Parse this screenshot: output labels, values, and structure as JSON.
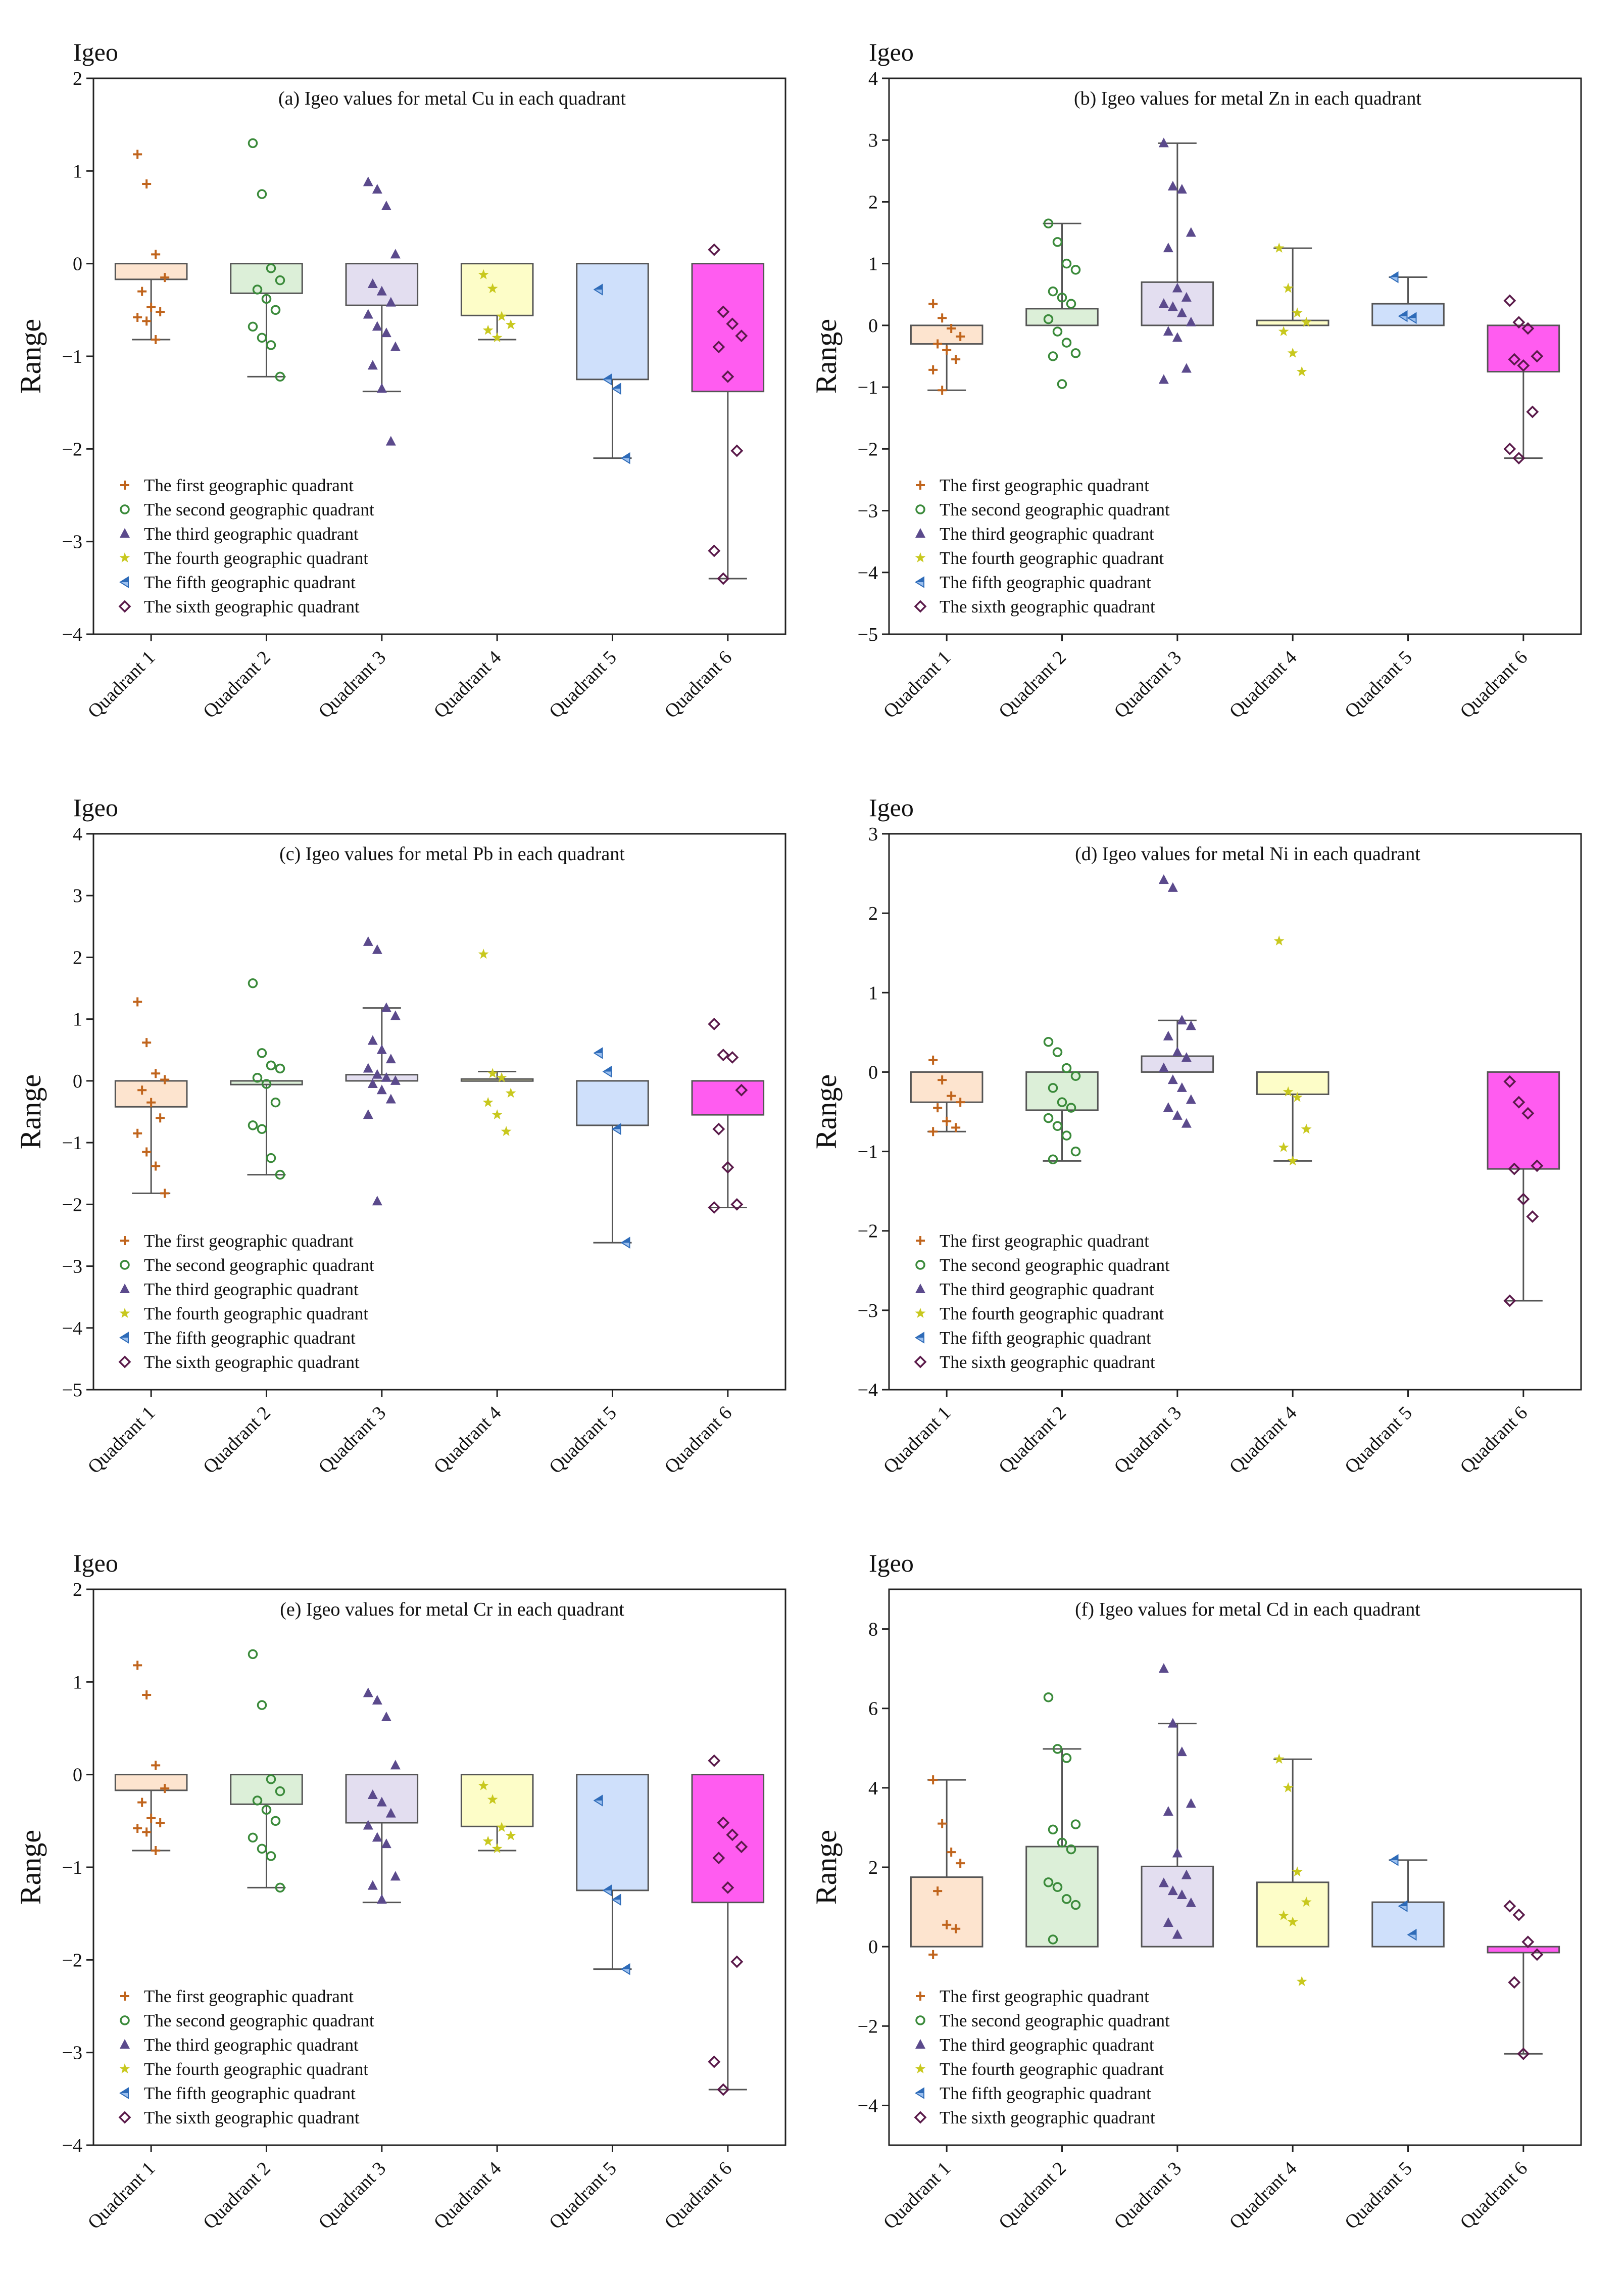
{
  "figure": {
    "igeo_label": "Igeo",
    "y_label": "Range",
    "categories": [
      "Quadrant 1",
      "Quadrant 2",
      "Quadrant 3",
      "Quadrant 4",
      "Quadrant 5",
      "Quadrant 6"
    ],
    "legend": [
      "The first geographic quadrant",
      "The second geographic quadrant",
      "The third geographic quadrant",
      "The fourth geographic quadrant",
      "The fifth geographic quadrant",
      "The sixth geographic quadrant"
    ],
    "series_colors": [
      "#c0641c",
      "#3a8a3a",
      "#5b4a8c",
      "#c8c81e",
      "#2e6bb8",
      "#5a1a4a"
    ],
    "box_fills": [
      "#fde4cf",
      "#dcefd8",
      "#e3def0",
      "#fdfdc8",
      "#cfe0fb",
      "#ff5cf0"
    ],
    "markers": [
      "plus",
      "circle",
      "triangle",
      "star",
      "half-triangle",
      "diamond"
    ]
  },
  "chart_data": [
    {
      "type": "box",
      "title": "(a) Igeo values for metal Cu in each quadrant",
      "ylabel": "Range",
      "ylim": [
        -4,
        2
      ],
      "yticks": [
        2,
        1,
        0,
        -1,
        -2,
        -3,
        -4
      ],
      "categories": [
        "Quadrant 1",
        "Quadrant 2",
        "Quadrant 3",
        "Quadrant 4",
        "Quadrant 5",
        "Quadrant 6"
      ],
      "boxes": [
        {
          "top": 0,
          "bottom": -0.17,
          "whisker_low": -0.82,
          "whisker_high": null
        },
        {
          "top": 0,
          "bottom": -0.32,
          "whisker_low": -1.22,
          "whisker_high": null
        },
        {
          "top": 0,
          "bottom": -0.45,
          "whisker_low": -1.38,
          "whisker_high": null
        },
        {
          "top": 0,
          "bottom": -0.56,
          "whisker_low": -0.82,
          "whisker_high": null
        },
        {
          "top": 0,
          "bottom": -1.25,
          "whisker_low": -2.1,
          "whisker_high": null
        },
        {
          "top": 0,
          "bottom": -1.38,
          "whisker_low": -3.4,
          "whisker_high": null
        }
      ],
      "points": [
        [
          1.18,
          0.86,
          0.1,
          -0.15,
          -0.3,
          -0.47,
          -0.52,
          -0.58,
          -0.62,
          -0.82
        ],
        [
          1.3,
          0.75,
          -0.05,
          -0.18,
          -0.28,
          -0.38,
          -0.5,
          -0.68,
          -0.8,
          -0.88,
          -1.22
        ],
        [
          0.88,
          0.8,
          0.62,
          0.1,
          -0.22,
          -0.3,
          -0.42,
          -0.55,
          -0.68,
          -0.75,
          -0.9,
          -1.1,
          -1.35,
          -1.92
        ],
        [
          -0.12,
          -0.27,
          -0.57,
          -0.66,
          -0.72,
          -0.8
        ],
        [
          -0.28,
          -1.25,
          -1.35,
          -2.1
        ],
        [
          0.15,
          -0.52,
          -0.65,
          -0.78,
          -0.9,
          -1.22,
          -2.02,
          -3.1,
          -3.4
        ]
      ]
    },
    {
      "type": "box",
      "title": "(b) Igeo values for metal Zn in each quadrant",
      "ylabel": "Range",
      "ylim": [
        -5,
        4
      ],
      "yticks": [
        4,
        3,
        2,
        1,
        0,
        -1,
        -2,
        -3,
        -4,
        -5
      ],
      "categories": [
        "Quadrant 1",
        "Quadrant 2",
        "Quadrant 3",
        "Quadrant 4",
        "Quadrant 5",
        "Quadrant 6"
      ],
      "boxes": [
        {
          "top": 0,
          "bottom": -0.3,
          "whisker_low": -1.05,
          "whisker_high": null
        },
        {
          "top": 0.27,
          "bottom": 0,
          "whisker_low": null,
          "whisker_high": 1.65
        },
        {
          "top": 0.7,
          "bottom": 0,
          "whisker_low": null,
          "whisker_high": 2.95
        },
        {
          "top": 0.08,
          "bottom": 0,
          "whisker_low": null,
          "whisker_high": 1.25
        },
        {
          "top": 0.35,
          "bottom": 0,
          "whisker_low": null,
          "whisker_high": 0.78
        },
        {
          "top": 0,
          "bottom": -0.75,
          "whisker_low": -2.15,
          "whisker_high": null
        }
      ],
      "points": [
        [
          0.35,
          0.12,
          -0.05,
          -0.18,
          -0.3,
          -0.4,
          -0.55,
          -0.72,
          -1.05
        ],
        [
          1.65,
          1.35,
          1.0,
          0.9,
          0.55,
          0.45,
          0.35,
          0.1,
          -0.1,
          -0.28,
          -0.45,
          -0.5,
          -0.95
        ],
        [
          2.95,
          2.25,
          2.2,
          1.5,
          1.25,
          0.6,
          0.45,
          0.35,
          0.3,
          0.2,
          0.05,
          -0.1,
          -0.2,
          -0.7,
          -0.88
        ],
        [
          1.25,
          0.6,
          0.2,
          0.05,
          -0.1,
          -0.45,
          -0.75
        ],
        [
          0.78,
          0.15,
          0.12
        ],
        [
          0.4,
          0.05,
          -0.05,
          -0.5,
          -0.55,
          -0.65,
          -1.4,
          -2.0,
          -2.15
        ]
      ]
    },
    {
      "type": "box",
      "title": "(c) Igeo values for metal Pb in each quadrant",
      "ylabel": "Range",
      "ylim": [
        -5,
        4
      ],
      "yticks": [
        4,
        3,
        2,
        1,
        0,
        -1,
        -2,
        -3,
        -4,
        -5
      ],
      "categories": [
        "Quadrant 1",
        "Quadrant 2",
        "Quadrant 3",
        "Quadrant 4",
        "Quadrant 5",
        "Quadrant 6"
      ],
      "boxes": [
        {
          "top": 0,
          "bottom": -0.42,
          "whisker_low": -1.82,
          "whisker_high": null
        },
        {
          "top": 0,
          "bottom": -0.06,
          "whisker_low": -1.52,
          "whisker_high": null
        },
        {
          "top": 0.1,
          "bottom": 0,
          "whisker_low": null,
          "whisker_high": 1.18
        },
        {
          "top": 0.03,
          "bottom": 0,
          "whisker_low": null,
          "whisker_high": 0.15
        },
        {
          "top": 0,
          "bottom": -0.72,
          "whisker_low": -2.62,
          "whisker_high": null
        },
        {
          "top": 0,
          "bottom": -0.55,
          "whisker_low": -2.05,
          "whisker_high": null
        }
      ],
      "points": [
        [
          1.28,
          0.62,
          0.12,
          0.02,
          -0.15,
          -0.35,
          -0.6,
          -0.85,
          -1.15,
          -1.38,
          -1.82
        ],
        [
          1.58,
          0.45,
          0.25,
          0.2,
          0.05,
          -0.05,
          -0.35,
          -0.72,
          -0.78,
          -1.25,
          -1.52
        ],
        [
          2.25,
          2.12,
          1.18,
          1.05,
          0.65,
          0.5,
          0.35,
          0.2,
          0.1,
          0.05,
          0.0,
          -0.05,
          -0.15,
          -0.3,
          -0.55,
          -1.95
        ],
        [
          2.05,
          0.12,
          0.05,
          -0.2,
          -0.35,
          -0.55,
          -0.82
        ],
        [
          0.45,
          0.15,
          -0.78,
          -2.62
        ],
        [
          0.92,
          0.42,
          0.38,
          -0.15,
          -0.78,
          -1.4,
          -2.0,
          -2.05
        ]
      ]
    },
    {
      "type": "box",
      "title": "(d) Igeo values for metal Ni in each quadrant",
      "ylabel": "Range",
      "ylim": [
        -4,
        3
      ],
      "yticks": [
        3,
        2,
        1,
        0,
        -1,
        -2,
        -3,
        -4
      ],
      "categories": [
        "Quadrant 1",
        "Quadrant 2",
        "Quadrant 3",
        "Quadrant 4",
        "Quadrant 5",
        "Quadrant 6"
      ],
      "boxes": [
        {
          "top": 0,
          "bottom": -0.38,
          "whisker_low": -0.75,
          "whisker_high": null
        },
        {
          "top": 0,
          "bottom": -0.48,
          "whisker_low": -1.12,
          "whisker_high": null
        },
        {
          "top": 0.2,
          "bottom": 0,
          "whisker_low": null,
          "whisker_high": 0.65
        },
        {
          "top": 0,
          "bottom": -0.28,
          "whisker_low": -1.12,
          "whisker_high": null
        },
        null,
        {
          "top": 0,
          "bottom": -1.22,
          "whisker_low": -2.88,
          "whisker_high": null
        }
      ],
      "points": [
        [
          0.15,
          -0.1,
          -0.3,
          -0.38,
          -0.45,
          -0.62,
          -0.7,
          -0.75
        ],
        [
          0.38,
          0.25,
          0.05,
          -0.05,
          -0.2,
          -0.38,
          -0.45,
          -0.58,
          -0.68,
          -0.8,
          -1.0,
          -1.1
        ],
        [
          2.42,
          2.32,
          0.65,
          0.58,
          0.45,
          0.25,
          0.18,
          0.05,
          -0.1,
          -0.2,
          -0.35,
          -0.45,
          -0.55,
          -0.65
        ],
        [
          1.65,
          -0.25,
          -0.32,
          -0.72,
          -0.95,
          -1.12
        ],
        [],
        [
          -0.12,
          -0.38,
          -0.52,
          -1.18,
          -1.22,
          -1.6,
          -1.82,
          -2.88
        ]
      ]
    },
    {
      "type": "box",
      "title": "(e) Igeo values for metal Cr in each quadrant",
      "ylabel": "Range",
      "ylim": [
        -4,
        2
      ],
      "yticks": [
        2,
        1,
        0,
        -1,
        -2,
        -3,
        -4
      ],
      "categories": [
        "Quadrant 1",
        "Quadrant 2",
        "Quadrant 3",
        "Quadrant 4",
        "Quadrant 5",
        "Quadrant 6"
      ],
      "boxes": [
        {
          "top": 0,
          "bottom": -0.17,
          "whisker_low": -0.82,
          "whisker_high": null
        },
        {
          "top": 0,
          "bottom": -0.32,
          "whisker_low": -1.22,
          "whisker_high": null
        },
        {
          "top": 0,
          "bottom": -0.52,
          "whisker_low": -1.38,
          "whisker_high": null
        },
        {
          "top": 0,
          "bottom": -0.56,
          "whisker_low": -0.82,
          "whisker_high": null
        },
        {
          "top": 0,
          "bottom": -1.25,
          "whisker_low": -2.1,
          "whisker_high": null
        },
        {
          "top": 0,
          "bottom": -1.38,
          "whisker_low": -3.4,
          "whisker_high": null
        }
      ],
      "points": [
        [
          1.18,
          0.86,
          0.1,
          -0.15,
          -0.3,
          -0.47,
          -0.52,
          -0.58,
          -0.62,
          -0.82
        ],
        [
          1.3,
          0.75,
          -0.05,
          -0.18,
          -0.28,
          -0.38,
          -0.5,
          -0.68,
          -0.8,
          -0.88,
          -1.22
        ],
        [
          0.88,
          0.8,
          0.62,
          0.1,
          -0.22,
          -0.3,
          -0.42,
          -0.55,
          -0.68,
          -0.75,
          -1.1,
          -1.2,
          -1.35
        ],
        [
          -0.12,
          -0.27,
          -0.57,
          -0.66,
          -0.72,
          -0.8
        ],
        [
          -0.28,
          -1.25,
          -1.35,
          -2.1
        ],
        [
          0.15,
          -0.52,
          -0.65,
          -0.78,
          -0.9,
          -1.22,
          -2.02,
          -3.1,
          -3.4
        ]
      ]
    },
    {
      "type": "box",
      "title": "(f) Igeo values for metal Cd in each quadrant",
      "ylabel": "Range",
      "ylim": [
        -5,
        9
      ],
      "yticks": [
        8,
        6,
        4,
        2,
        0,
        -2,
        -4
      ],
      "categories": [
        "Quadrant 1",
        "Quadrant 2",
        "Quadrant 3",
        "Quadrant 4",
        "Quadrant 5",
        "Quadrant 6"
      ],
      "boxes": [
        {
          "top": 1.75,
          "bottom": 0,
          "whisker_low": null,
          "whisker_high": 4.2
        },
        {
          "top": 2.52,
          "bottom": 0,
          "whisker_low": null,
          "whisker_high": 4.98
        },
        {
          "top": 2.02,
          "bottom": 0,
          "whisker_low": null,
          "whisker_high": 5.62
        },
        {
          "top": 1.62,
          "bottom": 0,
          "whisker_low": null,
          "whisker_high": 4.72
        },
        {
          "top": 1.12,
          "bottom": 0,
          "whisker_low": null,
          "whisker_high": 2.18
        },
        {
          "top": 0,
          "bottom": -0.15,
          "whisker_low": -2.7,
          "whisker_high": null
        }
      ],
      "points": [
        [
          4.2,
          3.1,
          2.38,
          2.1,
          1.4,
          0.55,
          0.45,
          -0.2
        ],
        [
          6.28,
          4.98,
          4.75,
          3.08,
          2.95,
          2.62,
          2.45,
          1.62,
          1.5,
          1.2,
          1.05,
          0.18
        ],
        [
          7.0,
          5.62,
          4.9,
          3.6,
          3.4,
          2.35,
          1.8,
          1.6,
          1.4,
          1.3,
          1.1,
          0.6,
          0.3
        ],
        [
          4.72,
          4.0,
          1.88,
          1.12,
          0.78,
          0.62,
          -0.88
        ],
        [
          2.18,
          1.02,
          0.3
        ],
        [
          1.02,
          0.8,
          0.12,
          -0.2,
          -0.9,
          -2.7
        ]
      ]
    }
  ]
}
